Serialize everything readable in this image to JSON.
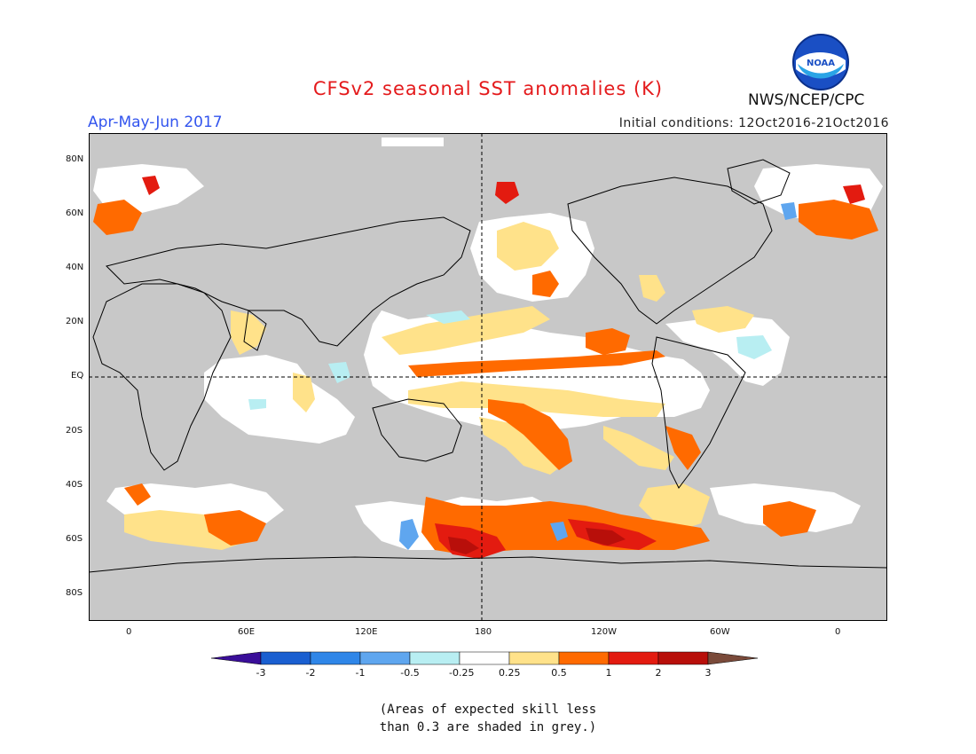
{
  "title": "CFSv2 seasonal SST anomalies (K)",
  "period": "Apr-May-Jun 2017",
  "initial_conditions": "Initial conditions: 12Oct2016-21Oct2016",
  "agency": "NWS/NCEP/CPC",
  "logo_text": "NOAA",
  "lat_labels": [
    "80N",
    "60N",
    "40N",
    "20N",
    "EQ",
    "20S",
    "40S",
    "60S",
    "80S"
  ],
  "lon_labels": [
    "0",
    "60E",
    "120E",
    "180",
    "120W",
    "60W",
    "0"
  ],
  "colorbar": {
    "labels": [
      "-3",
      "-2",
      "-1",
      "-0.5",
      "-0.25",
      "0.25",
      "0.5",
      "1",
      "2",
      "3"
    ],
    "colors": [
      "#3a0e99",
      "#1a5fd0",
      "#2f86e8",
      "#5fa6ef",
      "#b8eef2",
      "#ffffff",
      "#ffe28a",
      "#ff6a00",
      "#e31b10",
      "#b80f0a",
      "#7a4a3a"
    ]
  },
  "note_line1": "(Areas of expected skill less",
  "note_line2": "than 0.3 are shaded in grey.)",
  "colors": {
    "grey": "#c8c8c8",
    "title": "#e41a1c",
    "period": "#3355ee"
  }
}
